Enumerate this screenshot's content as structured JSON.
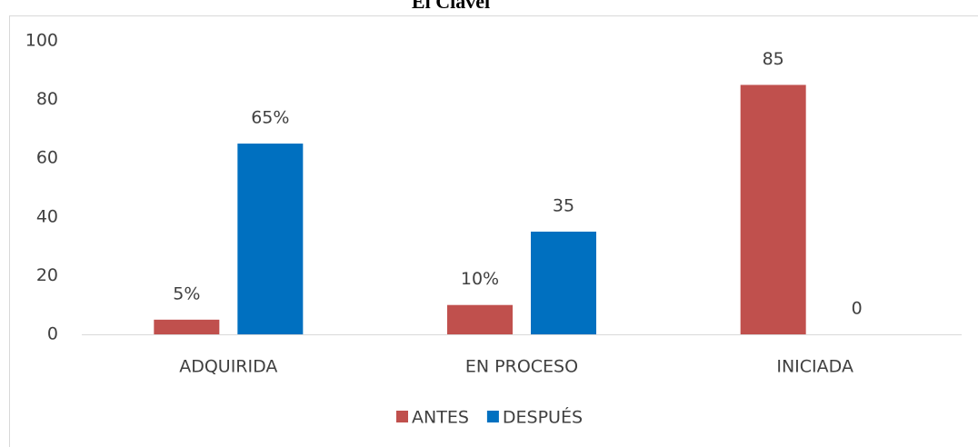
{
  "chart_data": {
    "type": "bar",
    "title": "El Clavel",
    "categories": [
      "ADQUIRIDA",
      "EN PROCESO",
      "INICIADA"
    ],
    "series": [
      {
        "name": "ANTES",
        "color": "#c0504d",
        "values": [
          5,
          10,
          85
        ],
        "value_labels": [
          "5%",
          "10%",
          "85"
        ]
      },
      {
        "name": "DESPUÉS",
        "color": "#0070c0",
        "values": [
          65,
          35,
          0
        ],
        "value_labels": [
          "65%",
          "35",
          "0"
        ]
      }
    ],
    "ylim": [
      0,
      100
    ],
    "yticks": [
      0,
      20,
      40,
      60,
      80,
      100
    ],
    "grid": false,
    "legend": "bottom"
  }
}
